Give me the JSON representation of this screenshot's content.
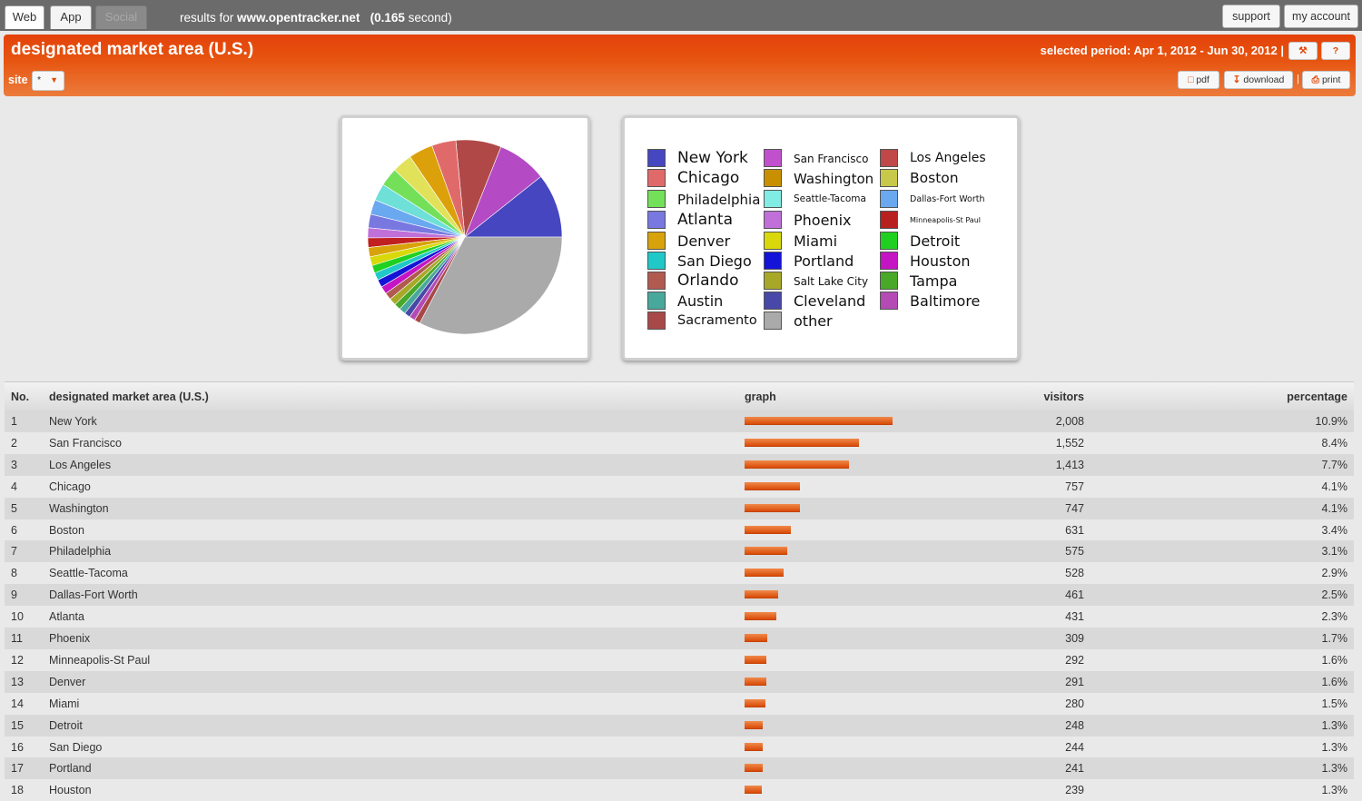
{
  "tabs": [
    {
      "label": "Web",
      "state": "active"
    },
    {
      "label": "App",
      "state": "inactive"
    },
    {
      "label": "Social",
      "state": "disabled"
    }
  ],
  "results": {
    "prefix": "results for",
    "site": "www.opentracker.net",
    "time": "(0.165",
    "time_suffix": "second)"
  },
  "top_buttons": {
    "support": "support",
    "account": "my account"
  },
  "header": {
    "title": "designated market area (U.S.)",
    "period_label": "selected period:",
    "period_value": "Apr 1, 2012 - Jun 30, 2012",
    "separator": "|",
    "site_label": "site",
    "site_value": "*",
    "pdf": "pdf",
    "download": "download",
    "print": "print"
  },
  "colors": {
    "accent": "#e4420a",
    "bar": "#e0580f"
  },
  "chart_data": {
    "type": "pie",
    "slices": [
      {
        "label": "New York",
        "value": 10.9,
        "color": "#4646c0"
      },
      {
        "label": "San Francisco",
        "value": 8.4,
        "color": "#b44ac4"
      },
      {
        "label": "Los Angeles",
        "value": 7.7,
        "color": "#b04848"
      },
      {
        "label": "Chicago",
        "value": 4.1,
        "color": "#e06a6a"
      },
      {
        "label": "Washington",
        "value": 4.1,
        "color": "#dca00a"
      },
      {
        "label": "Boston",
        "value": 3.4,
        "color": "#e2e25a"
      },
      {
        "label": "Philadelphia",
        "value": 3.1,
        "color": "#74e05a"
      },
      {
        "label": "Seattle-Tacoma",
        "value": 2.9,
        "color": "#6ee0d8"
      },
      {
        "label": "Dallas-Fort Worth",
        "value": 2.5,
        "color": "#6aa8f0"
      },
      {
        "label": "Atlanta",
        "value": 2.3,
        "color": "#7878e0"
      },
      {
        "label": "Phoenix",
        "value": 1.7,
        "color": "#c070d8"
      },
      {
        "label": "Minneapolis-St Paul",
        "value": 1.6,
        "color": "#c02020"
      },
      {
        "label": "Denver",
        "value": 1.6,
        "color": "#d8a20a"
      },
      {
        "label": "Miami",
        "value": 1.5,
        "color": "#d8d80a"
      },
      {
        "label": "Detroit",
        "value": 1.3,
        "color": "#20d020"
      },
      {
        "label": "San Diego",
        "value": 1.3,
        "color": "#20c8c8"
      },
      {
        "label": "Portland",
        "value": 1.3,
        "color": "#1414d8"
      },
      {
        "label": "Houston",
        "value": 1.3,
        "color": "#c414c4"
      },
      {
        "label": "Orlando",
        "value": 1.2,
        "color": "#b05a50"
      },
      {
        "label": "Salt Lake City",
        "value": 1.2,
        "color": "#a8a828"
      },
      {
        "label": "Tampa",
        "value": 1.1,
        "color": "#48a828"
      },
      {
        "label": "Austin",
        "value": 1.1,
        "color": "#48a89c"
      },
      {
        "label": "Cleveland",
        "value": 1.0,
        "color": "#4848a8"
      },
      {
        "label": "Baltimore",
        "value": 1.0,
        "color": "#b44ab4"
      },
      {
        "label": "Sacramento",
        "value": 1.0,
        "color": "#a84848"
      },
      {
        "label": "other",
        "value": 33.3,
        "color": "#aaaaaa"
      }
    ]
  },
  "legend": [
    [
      {
        "label": "New York",
        "color": "#4646c0",
        "size": 17
      },
      {
        "label": "Chicago",
        "color": "#e06a6a",
        "size": 17
      },
      {
        "label": "Philadelphia",
        "color": "#74e05a",
        "size": 15
      },
      {
        "label": "Atlanta",
        "color": "#7878e0",
        "size": 17
      },
      {
        "label": "Denver",
        "color": "#d8a20a",
        "size": 16
      },
      {
        "label": "San Diego",
        "color": "#20c8c8",
        "size": 16
      },
      {
        "label": "Orlando",
        "color": "#b05a50",
        "size": 17
      },
      {
        "label": "Austin",
        "color": "#48a89c",
        "size": 16
      },
      {
        "label": "Sacramento",
        "color": "#a84848",
        "size": 14.5
      }
    ],
    [
      {
        "label": "San Francisco",
        "color": "#c050cc",
        "size": 12
      },
      {
        "label": "Washington",
        "color": "#c89000",
        "size": 15
      },
      {
        "label": "Seattle-Tacoma",
        "color": "#80ece4",
        "size": 10.5
      },
      {
        "label": "Phoenix",
        "color": "#c070d8",
        "size": 16
      },
      {
        "label": "Miami",
        "color": "#d8d80a",
        "size": 16
      },
      {
        "label": "Portland",
        "color": "#1414d8",
        "size": 16
      },
      {
        "label": "Salt Lake City",
        "color": "#a8a828",
        "size": 12
      },
      {
        "label": "Cleveland",
        "color": "#4848a8",
        "size": 16
      },
      {
        "label": "other",
        "color": "#aaaaaa",
        "size": 16
      }
    ],
    [
      {
        "label": "Los Angeles",
        "color": "#c04848",
        "size": 14
      },
      {
        "label": "Boston",
        "color": "#c8c84a",
        "size": 15.5
      },
      {
        "label": "Dallas-Fort Worth",
        "color": "#6aa8f0",
        "size": 9.5
      },
      {
        "label": "Minneapolis-St Paul",
        "color": "#b82020",
        "size": 8
      },
      {
        "label": "Detroit",
        "color": "#20d020",
        "size": 16
      },
      {
        "label": "Houston",
        "color": "#c414c4",
        "size": 16
      },
      {
        "label": "Tampa",
        "color": "#48a828",
        "size": 16
      },
      {
        "label": "Baltimore",
        "color": "#b44ab4",
        "size": 16
      }
    ]
  ],
  "table": {
    "headers": {
      "no": "No.",
      "area": "designated market area (U.S.)",
      "graph": "graph",
      "visitors": "visitors",
      "percentage": "percentage"
    },
    "rows": [
      {
        "no": "1",
        "area": "New York",
        "visitors": "2,008",
        "pct": "10.9%",
        "ratio": 1.0
      },
      {
        "no": "2",
        "area": "San Francisco",
        "visitors": "1,552",
        "pct": "8.4%",
        "ratio": 0.773
      },
      {
        "no": "3",
        "area": "Los Angeles",
        "visitors": "1,413",
        "pct": "7.7%",
        "ratio": 0.704
      },
      {
        "no": "4",
        "area": "Chicago",
        "visitors": "757",
        "pct": "4.1%",
        "ratio": 0.377
      },
      {
        "no": "5",
        "area": "Washington",
        "visitors": "747",
        "pct": "4.1%",
        "ratio": 0.372
      },
      {
        "no": "6",
        "area": "Boston",
        "visitors": "631",
        "pct": "3.4%",
        "ratio": 0.314
      },
      {
        "no": "7",
        "area": "Philadelphia",
        "visitors": "575",
        "pct": "3.1%",
        "ratio": 0.286
      },
      {
        "no": "8",
        "area": "Seattle-Tacoma",
        "visitors": "528",
        "pct": "2.9%",
        "ratio": 0.263
      },
      {
        "no": "9",
        "area": "Dallas-Fort Worth",
        "visitors": "461",
        "pct": "2.5%",
        "ratio": 0.23
      },
      {
        "no": "10",
        "area": "Atlanta",
        "visitors": "431",
        "pct": "2.3%",
        "ratio": 0.215
      },
      {
        "no": "11",
        "area": "Phoenix",
        "visitors": "309",
        "pct": "1.7%",
        "ratio": 0.154
      },
      {
        "no": "12",
        "area": "Minneapolis-St Paul",
        "visitors": "292",
        "pct": "1.6%",
        "ratio": 0.145
      },
      {
        "no": "13",
        "area": "Denver",
        "visitors": "291",
        "pct": "1.6%",
        "ratio": 0.145
      },
      {
        "no": "14",
        "area": "Miami",
        "visitors": "280",
        "pct": "1.5%",
        "ratio": 0.139
      },
      {
        "no": "15",
        "area": "Detroit",
        "visitors": "248",
        "pct": "1.3%",
        "ratio": 0.124
      },
      {
        "no": "16",
        "area": "San Diego",
        "visitors": "244",
        "pct": "1.3%",
        "ratio": 0.122
      },
      {
        "no": "17",
        "area": "Portland",
        "visitors": "241",
        "pct": "1.3%",
        "ratio": 0.12
      },
      {
        "no": "18",
        "area": "Houston",
        "visitors": "239",
        "pct": "1.3%",
        "ratio": 0.119
      }
    ]
  }
}
